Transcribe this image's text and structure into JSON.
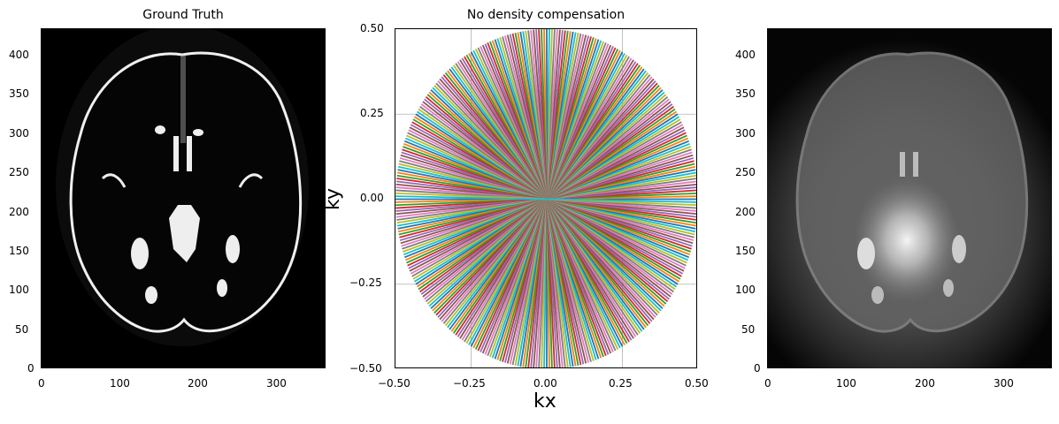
{
  "figure": {
    "panels": [
      {
        "title": "Ground Truth",
        "type": "image"
      },
      {
        "title": "No density compensation",
        "type": "line",
        "xlabel": "kx",
        "ylabel": "ky"
      },
      {
        "title": "",
        "type": "image"
      }
    ]
  },
  "ticks": {
    "img_y": [
      "400",
      "350",
      "300",
      "250",
      "200",
      "150",
      "100",
      "50",
      "0"
    ],
    "img_x": [
      "0",
      "100",
      "200",
      "300"
    ],
    "k_y": [
      "0.50",
      "0.25",
      "0.00",
      "−0.25",
      "−0.50"
    ],
    "k_x": [
      "−0.50",
      "−0.25",
      "0.00",
      "0.25",
      "0.50"
    ]
  },
  "colors": {
    "tab10": [
      "#1f77b4",
      "#ff7f0e",
      "#2ca02c",
      "#d62728",
      "#9467bd",
      "#8c564b",
      "#e377c2",
      "#7f7f7f",
      "#bcbd22",
      "#17becf"
    ],
    "grid": "#b0b0b0"
  },
  "chart_data": [
    {
      "type": "heatmap",
      "title": "Ground Truth",
      "xlabel": "",
      "ylabel": "",
      "xlim": [
        0,
        362
      ],
      "ylim": [
        0,
        434
      ],
      "xticks": [
        0,
        100,
        200,
        300
      ],
      "yticks": [
        0,
        50,
        100,
        150,
        200,
        250,
        300,
        350,
        400
      ],
      "colormap": "gray",
      "description": "Axial brain MRI slice, black background with bright CSF/skull outline"
    },
    {
      "type": "line",
      "title": "No density compensation",
      "xlabel": "kx",
      "ylabel": "ky",
      "xlim": [
        -0.5,
        0.5
      ],
      "ylim": [
        -0.5,
        0.5
      ],
      "xticks": [
        -0.5,
        -0.25,
        0.0,
        0.25,
        0.5
      ],
      "yticks": [
        -0.5,
        -0.25,
        0.0,
        0.25,
        0.5
      ],
      "grid": true,
      "description": "Radial k-space trajectory: ~180 spokes through origin, radius 0.5, cycling tab10 colors",
      "series": {
        "spokes": 180,
        "radius": 0.5
      }
    },
    {
      "type": "heatmap",
      "title": "",
      "xlabel": "",
      "ylabel": "",
      "xlim": [
        0,
        362
      ],
      "ylim": [
        0,
        434
      ],
      "xticks": [
        0,
        100,
        200,
        300
      ],
      "yticks": [
        0,
        50,
        100,
        150,
        200,
        250,
        300,
        350,
        400
      ],
      "colormap": "gray",
      "description": "Blurry reconstruction without density compensation, bright center"
    }
  ]
}
